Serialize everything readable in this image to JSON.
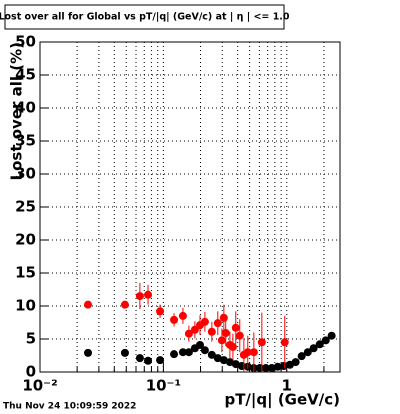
{
  "chart_data": {
    "type": "scatter",
    "title": "Lost over all for Global vs pT/|q| (GeV/c) at | η | <= 1.0",
    "x_label": "pT/|q| (GeV/c)",
    "y_label": "Lost over all (%)",
    "timestamp": "Thu Nov 24 10:09:59 2022",
    "log_x": true,
    "grid": true,
    "xlim": [
      0.01,
      2.7
    ],
    "ylim": [
      0,
      50
    ],
    "xticks": [
      {
        "value": 0.01,
        "label": "10⁻²"
      },
      {
        "value": 0.1,
        "label": "10⁻¹"
      },
      1
    ],
    "minor_xticks": [
      0.02,
      0.03,
      0.04,
      0.05,
      0.06,
      0.07,
      0.08,
      0.09,
      0.2,
      0.3,
      0.4,
      0.5,
      0.6,
      0.7,
      0.8,
      0.9,
      2
    ],
    "yticks": [
      0,
      5,
      10,
      15,
      20,
      25,
      30,
      35,
      40,
      45,
      50
    ],
    "series": [
      {
        "color": "#000000",
        "x": [
          0.0245,
          0.0488,
          0.0645,
          0.0751,
          0.094,
          0.122,
          0.144,
          0.161,
          0.18,
          0.198,
          0.217,
          0.247,
          0.276,
          0.309,
          0.346,
          0.386,
          0.432,
          0.483,
          0.541,
          0.605,
          0.676,
          0.756,
          0.846,
          0.946,
          1.06,
          1.18,
          1.32,
          1.48,
          1.65,
          1.85,
          2.07,
          2.31
        ],
        "values": [
          2.9,
          2.9,
          2.1,
          1.7,
          1.8,
          2.7,
          3.0,
          3.0,
          3.6,
          4.1,
          3.3,
          2.6,
          2.1,
          1.8,
          1.5,
          1.2,
          0.9,
          0.8,
          0.6,
          0.6,
          0.6,
          0.6,
          0.8,
          0.9,
          1.1,
          1.5,
          2.4,
          3.0,
          3.6,
          4.2,
          4.8,
          5.5
        ],
        "errors": [
          0.2,
          0.3,
          0.4,
          0.4,
          0.4,
          0.4,
          0.4,
          0.4,
          0.5,
          0.5,
          0.5,
          0.5,
          0.5,
          0.5,
          0.5,
          0.5,
          0.4,
          0.4,
          0.3,
          0.3,
          0.3,
          0.3,
          0.3,
          0.3,
          0.3,
          0.3,
          0.3,
          0.3,
          0.3,
          0.3,
          0.3,
          0.3
        ]
      },
      {
        "color": "#ff0000",
        "x": [
          0.0245,
          0.0488,
          0.0645,
          0.0751,
          0.094,
          0.122,
          0.144,
          0.161,
          0.18,
          0.198,
          0.217,
          0.247,
          0.276,
          0.298,
          0.309,
          0.32,
          0.346,
          0.366,
          0.386,
          0.416,
          0.449,
          0.483,
          0.541,
          0.628,
          0.963
        ],
        "values": [
          10.2,
          10.2,
          11.5,
          11.7,
          9.2,
          7.9,
          8.5,
          5.8,
          6.4,
          7.1,
          7.6,
          6.1,
          7.4,
          4.8,
          8.2,
          5.9,
          4.1,
          3.8,
          6.7,
          5.5,
          2.6,
          3.0,
          3.0,
          4.5,
          4.5
        ],
        "errors": [
          0.3,
          0.6,
          2.0,
          1.5,
          1.0,
          1.0,
          1.2,
          1.2,
          1.3,
          1.5,
          1.5,
          1.5,
          1.8,
          1.8,
          2.0,
          2.0,
          2.0,
          2.0,
          2.5,
          2.5,
          2.5,
          2.5,
          3.0,
          4.5,
          4.0
        ]
      }
    ]
  }
}
